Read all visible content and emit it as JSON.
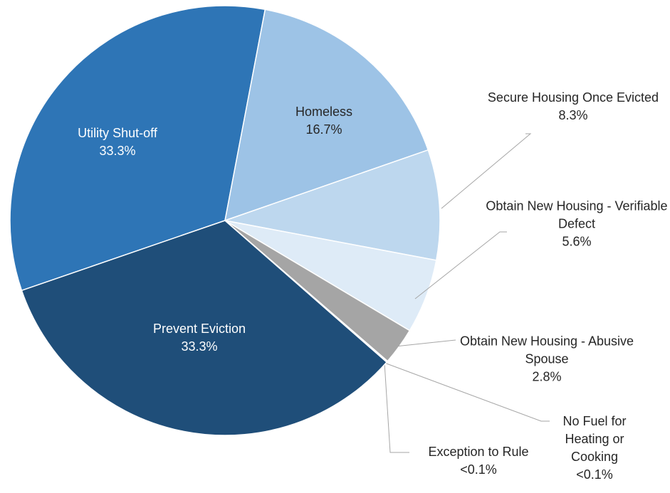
{
  "chart_data": {
    "type": "pie",
    "categories": [
      "Utility Shut-off",
      "Homeless",
      "Secure Housing Once Evicted",
      "Obtain New Housing - Verifiable Defect",
      "Obtain New Housing - Abusive Spouse",
      "No Fuel for Heating or Cooking",
      "Exception to Rule",
      "Prevent Eviction"
    ],
    "values": [
      33.3,
      16.7,
      8.3,
      5.6,
      2.8,
      0.05,
      0.05,
      33.3
    ],
    "value_labels": [
      "33.3%",
      "16.7%",
      "8.3%",
      "5.6%",
      "2.8%",
      "<0.1%",
      "<0.1%",
      "33.3%"
    ],
    "colors": [
      "#2e75b6",
      "#9dc3e6",
      "#bdd7ee",
      "#deebf7",
      "#a5a5a5",
      "#8c8c8c",
      "#7f7f7f",
      "#1f4e79"
    ]
  }
}
